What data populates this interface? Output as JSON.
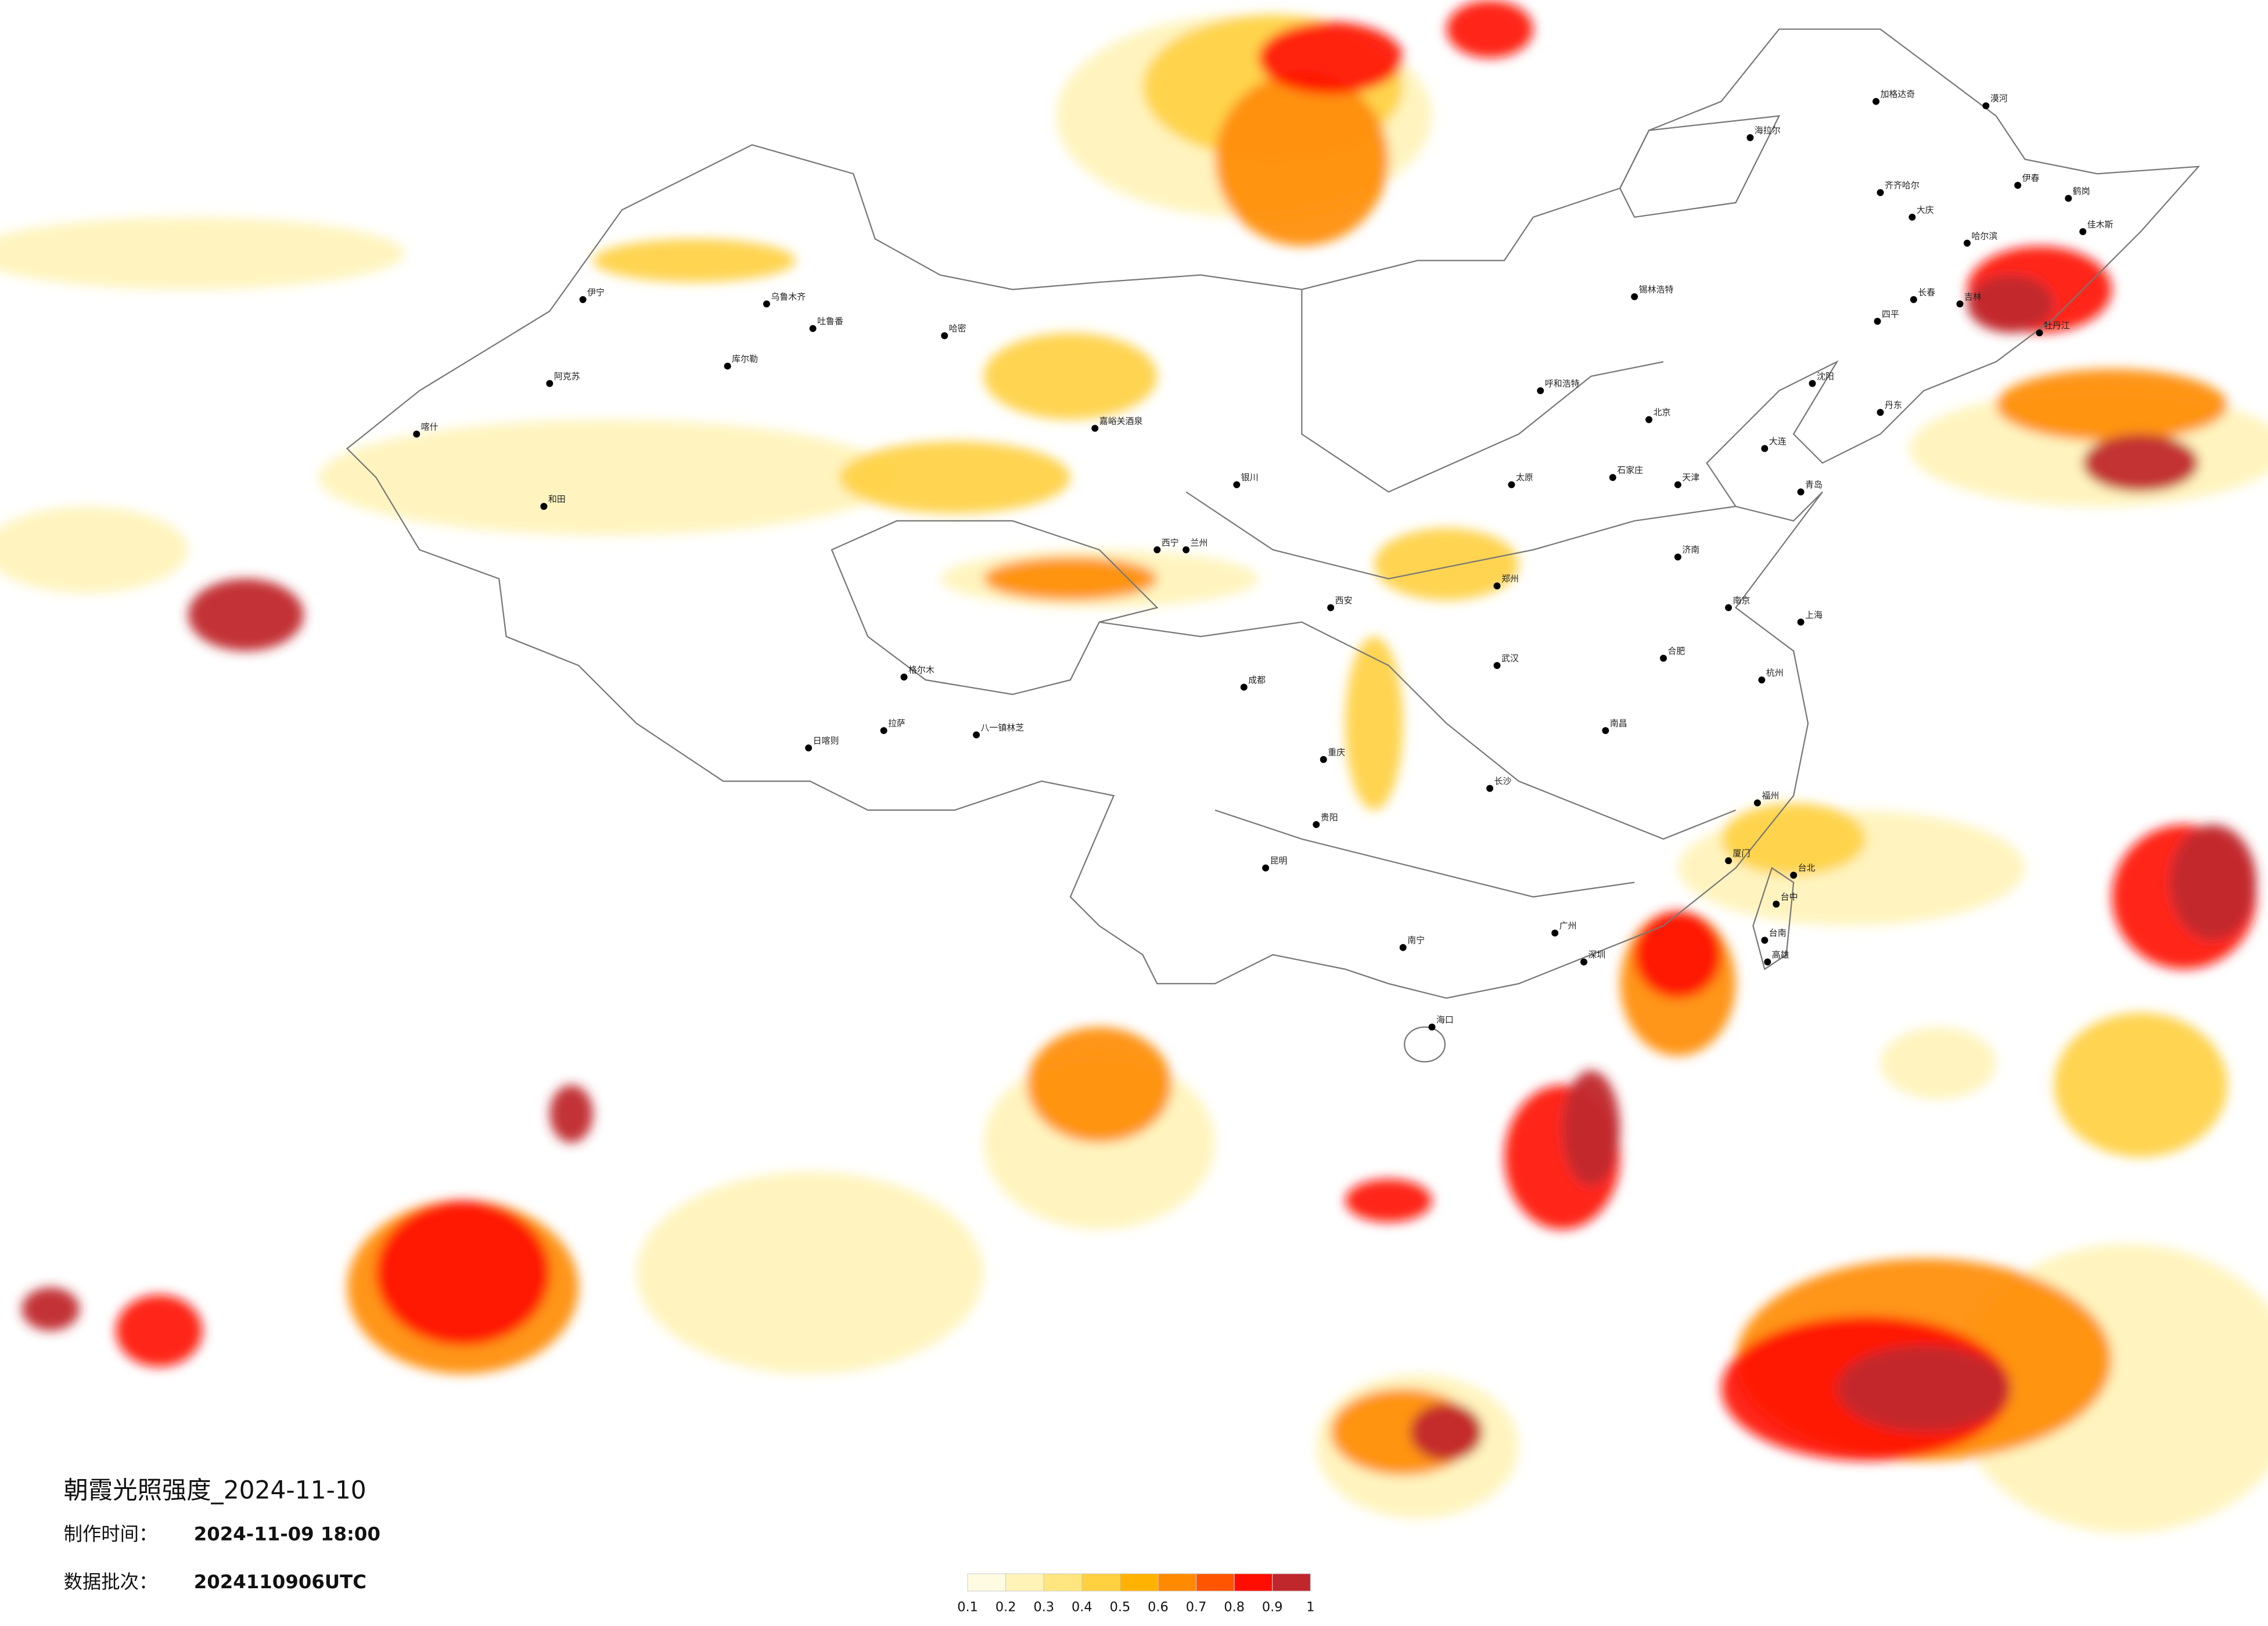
{
  "title": "朝霞光照强度_2024-11-10",
  "production_time": {
    "label": "制作时间：",
    "value": "2024-11-09 18:00"
  },
  "batch": {
    "label": "数据批次：",
    "value": "2024110906UTC"
  },
  "legend": {
    "ticks": [
      0.1,
      0.2,
      0.3,
      0.4,
      0.5,
      0.6,
      0.7,
      0.8,
      0.9,
      1
    ],
    "colors": [
      "#fffbe3",
      "#fff3b8",
      "#ffe680",
      "#ffd040",
      "#ffb300",
      "#ff8a00",
      "#ff5500",
      "#ff0d00",
      "#c0272d"
    ]
  },
  "cities": [
    "漠河",
    "加格达奇",
    "海拉尔",
    "齐齐哈尔",
    "大庆",
    "哈尔滨",
    "伊春",
    "鹤岗",
    "佳木斯",
    "牡丹江",
    "长春",
    "吉林",
    "四平",
    "沈阳",
    "大连",
    "丹东",
    "锡林浩特",
    "呼和浩特",
    "北京",
    "天津",
    "石家庄",
    "太原",
    "济南",
    "青岛",
    "郑州",
    "西安",
    "兰州",
    "银川",
    "西宁",
    "乌鲁木齐",
    "吐鲁番",
    "库尔勒",
    "阿克苏",
    "喀什",
    "和田",
    "伊宁",
    "哈密",
    "嘉峪关酒泉",
    "格尔木",
    "拉萨",
    "日喀则",
    "八一镇林芝",
    "成都",
    "重庆",
    "贵阳",
    "昆明",
    "南宁",
    "广州",
    "深圳",
    "海口",
    "长沙",
    "武汉",
    "南昌",
    "合肥",
    "南京",
    "上海",
    "杭州",
    "福州",
    "厦门",
    "台北",
    "台中",
    "台南",
    "高雄"
  ]
}
